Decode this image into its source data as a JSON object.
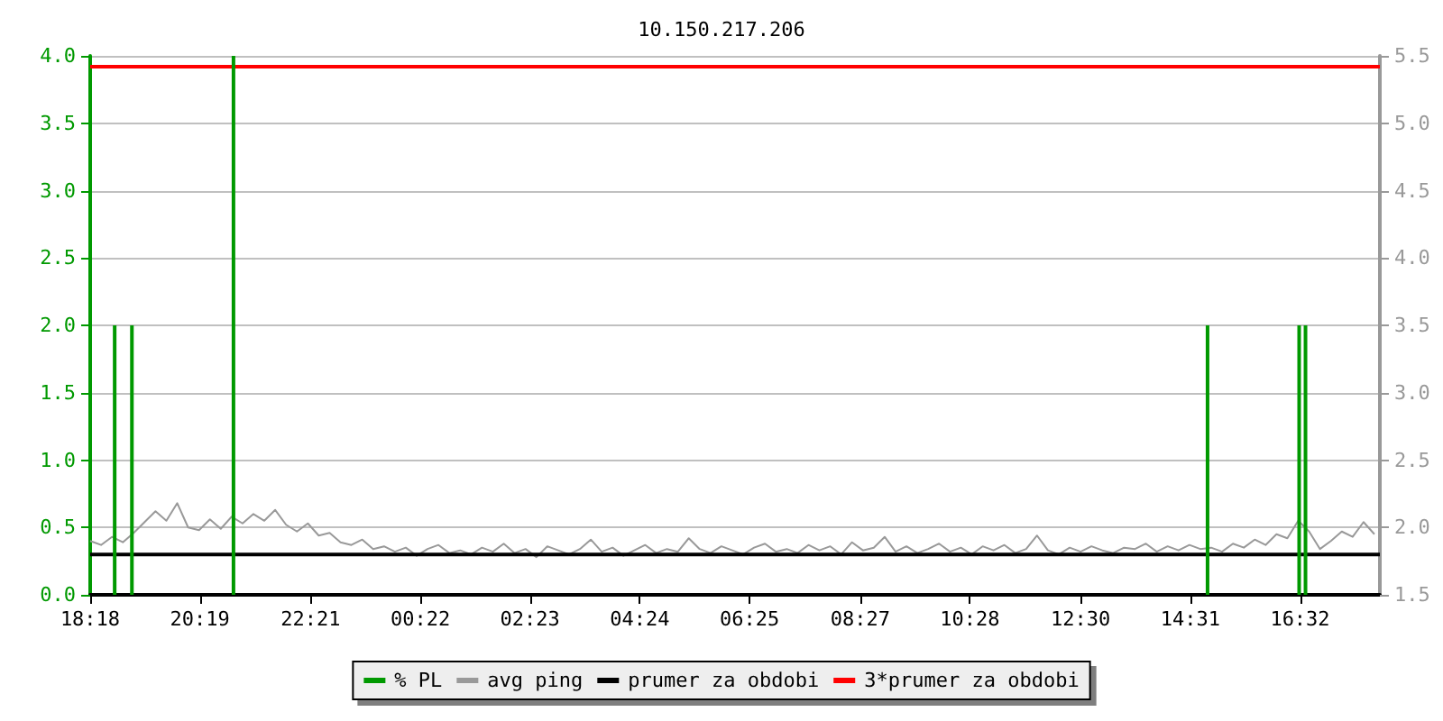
{
  "chart_data": {
    "type": "line",
    "title": "10.150.217.206",
    "xlim": [
      "--01-01T18:18",
      "--01-02T18:00"
    ],
    "xticks": [
      {
        "value": "--01-01T18:18",
        "label": "18:18"
      },
      {
        "value": "--01-01T20:19",
        "label": "20:19"
      },
      {
        "value": "--01-01T22:21",
        "label": "22:21"
      },
      {
        "value": "--01-02T00:22",
        "label": "00:22"
      },
      {
        "value": "--01-02T02:23",
        "label": "02:23"
      },
      {
        "value": "--01-02T04:24",
        "label": "04:24"
      },
      {
        "value": "--01-02T06:25",
        "label": "06:25"
      },
      {
        "value": "--01-02T08:27",
        "label": "08:27"
      },
      {
        "value": "--01-02T10:28",
        "label": "10:28"
      },
      {
        "value": "--01-02T12:30",
        "label": "12:30"
      },
      {
        "value": "--01-02T14:31",
        "label": "14:31"
      },
      {
        "value": "--01-02T16:32",
        "label": "16:32"
      }
    ],
    "ylim": [
      0,
      4.0
    ],
    "yticks": [
      {
        "value": 0,
        "label": "0.0"
      },
      {
        "value": 0.5,
        "label": "0.5"
      },
      {
        "value": 1,
        "label": "1.0"
      },
      {
        "value": 1.5,
        "label": "1.5"
      },
      {
        "value": 2,
        "label": "2.0"
      },
      {
        "value": 2.5,
        "label": "2.5"
      },
      {
        "value": 3,
        "label": "3.0"
      },
      {
        "value": 3.5,
        "label": "3.5"
      },
      {
        "value": 4,
        "label": "4.0"
      }
    ],
    "y2lim": [
      1.5,
      5.5
    ],
    "y2ticks": [
      {
        "value": 1.5,
        "label": "1.5"
      },
      {
        "value": 2,
        "label": "2.0"
      },
      {
        "value": 2.5,
        "label": "2.5"
      },
      {
        "value": 3,
        "label": "3.0"
      },
      {
        "value": 3.5,
        "label": "3.5"
      },
      {
        "value": 4,
        "label": "4.0"
      },
      {
        "value": 4.5,
        "label": "4.5"
      },
      {
        "value": 5,
        "label": "5.0"
      },
      {
        "value": 5.5,
        "label": "5.5"
      }
    ],
    "grid": "y",
    "legend": "bottom",
    "series": [
      {
        "name": "% PL",
        "type": "bar",
        "color": "#009900",
        "x": [
          "--01-01T18:45",
          "--01-01T19:04",
          "--01-01T20:56",
          "--01-02T14:50",
          "--01-02T16:31",
          "--01-02T16:38"
        ],
        "values": [
          2,
          2,
          4,
          2,
          2,
          2
        ]
      },
      {
        "name": "avg ping",
        "axis": "y2",
        "color": "#999999",
        "x": [
          "--01-01T18:18",
          "--01-01T18:30",
          "--01-01T18:42",
          "--01-01T18:54",
          "--01-01T19:06",
          "--01-01T19:18",
          "--01-01T19:30",
          "--01-01T19:42",
          "--01-01T19:54",
          "--01-01T20:06",
          "--01-01T20:18",
          "--01-01T20:30",
          "--01-01T20:42",
          "--01-01T20:54",
          "--01-01T21:06",
          "--01-01T21:18",
          "--01-01T21:30",
          "--01-01T21:42",
          "--01-01T21:54",
          "--01-01T22:06",
          "--01-01T22:18",
          "--01-01T22:30",
          "--01-01T22:42",
          "--01-01T22:54",
          "--01-01T23:06",
          "--01-01T23:18",
          "--01-01T23:30",
          "--01-01T23:42",
          "--01-01T23:54",
          "--01-02T00:06",
          "--01-02T00:18",
          "--01-02T00:30",
          "--01-02T00:42",
          "--01-02T00:54",
          "--01-02T01:06",
          "--01-02T01:18",
          "--01-02T01:30",
          "--01-02T01:42",
          "--01-02T01:54",
          "--01-02T02:06",
          "--01-02T02:18",
          "--01-02T02:30",
          "--01-02T02:42",
          "--01-02T02:54",
          "--01-02T03:06",
          "--01-02T03:18",
          "--01-02T03:30",
          "--01-02T03:42",
          "--01-02T03:54",
          "--01-02T04:06",
          "--01-02T04:18",
          "--01-02T04:30",
          "--01-02T04:42",
          "--01-02T04:54",
          "--01-02T05:06",
          "--01-02T05:18",
          "--01-02T05:30",
          "--01-02T05:42",
          "--01-02T05:54",
          "--01-02T06:06",
          "--01-02T06:18",
          "--01-02T06:30",
          "--01-02T06:42",
          "--01-02T06:54",
          "--01-02T07:06",
          "--01-02T07:18",
          "--01-02T07:30",
          "--01-02T07:42",
          "--01-02T07:54",
          "--01-02T08:06",
          "--01-02T08:18",
          "--01-02T08:30",
          "--01-02T08:42",
          "--01-02T08:54",
          "--01-02T09:06",
          "--01-02T09:18",
          "--01-02T09:30",
          "--01-02T09:42",
          "--01-02T09:54",
          "--01-02T10:06",
          "--01-02T10:18",
          "--01-02T10:30",
          "--01-02T10:42",
          "--01-02T10:54",
          "--01-02T11:06",
          "--01-02T11:18",
          "--01-02T11:30",
          "--01-02T11:42",
          "--01-02T11:54",
          "--01-02T12:06",
          "--01-02T12:18",
          "--01-02T12:30",
          "--01-02T12:42",
          "--01-02T12:54",
          "--01-02T13:06",
          "--01-02T13:18",
          "--01-02T13:30",
          "--01-02T13:42",
          "--01-02T13:54",
          "--01-02T14:06",
          "--01-02T14:18",
          "--01-02T14:30",
          "--01-02T14:42",
          "--01-02T14:54",
          "--01-02T15:06",
          "--01-02T15:18",
          "--01-02T15:30",
          "--01-02T15:42",
          "--01-02T15:54",
          "--01-02T16:06",
          "--01-02T16:18",
          "--01-02T16:30",
          "--01-02T16:42",
          "--01-02T16:54",
          "--01-02T17:06",
          "--01-02T17:18",
          "--01-02T17:30",
          "--01-02T17:42",
          "--01-02T17:54"
        ],
        "values": [
          1.9,
          1.87,
          1.93,
          1.89,
          1.96,
          2.04,
          2.12,
          2.05,
          2.18,
          2.0,
          1.98,
          2.06,
          1.99,
          2.08,
          2.03,
          2.1,
          2.05,
          2.13,
          2.02,
          1.97,
          2.03,
          1.94,
          1.96,
          1.89,
          1.87,
          1.91,
          1.84,
          1.86,
          1.82,
          1.85,
          1.79,
          1.84,
          1.87,
          1.81,
          1.83,
          1.8,
          1.85,
          1.82,
          1.88,
          1.81,
          1.84,
          1.78,
          1.86,
          1.83,
          1.8,
          1.84,
          1.91,
          1.82,
          1.85,
          1.79,
          1.83,
          1.87,
          1.81,
          1.84,
          1.82,
          1.92,
          1.84,
          1.81,
          1.86,
          1.83,
          1.8,
          1.85,
          1.88,
          1.82,
          1.84,
          1.81,
          1.87,
          1.83,
          1.86,
          1.8,
          1.89,
          1.83,
          1.85,
          1.93,
          1.82,
          1.86,
          1.81,
          1.84,
          1.88,
          1.82,
          1.85,
          1.8,
          1.86,
          1.83,
          1.87,
          1.81,
          1.84,
          1.94,
          1.83,
          1.8,
          1.85,
          1.82,
          1.86,
          1.83,
          1.81,
          1.85,
          1.84,
          1.88,
          1.82,
          1.86,
          1.83,
          1.87,
          1.84,
          1.85,
          1.82,
          1.88,
          1.85,
          1.91,
          1.87,
          1.95,
          1.92,
          2.05,
          1.97,
          1.84,
          1.9,
          1.97,
          1.93,
          2.04,
          1.95
        ]
      },
      {
        "name": "prumer za obdobi",
        "axis": "y2",
        "color": "#000000",
        "x": [
          "--01-01T18:18",
          "--01-02T18:00"
        ],
        "values": [
          1.8,
          1.8
        ]
      },
      {
        "name": "3*prumer za obdobi",
        "axis": "y2",
        "color": "#ff0000",
        "x": [
          "--01-01T18:18",
          "--01-02T18:00"
        ],
        "values": [
          5.42,
          5.42
        ]
      }
    ]
  }
}
